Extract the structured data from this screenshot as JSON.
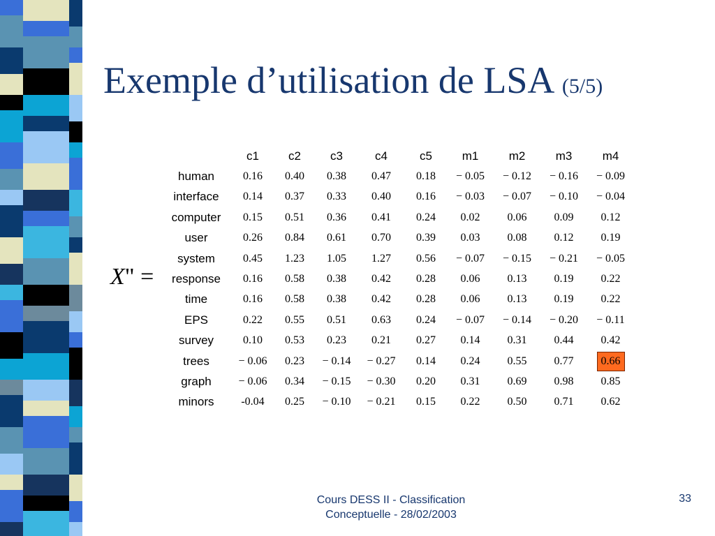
{
  "slide": {
    "title": "Exemple d’utilisation de LSA",
    "title_suffix": "(5/5)",
    "equation_var": "X",
    "equation_rest": "\" =",
    "footer_line1": "Cours DESS II - Classification",
    "footer_line2": "Conceptuelle - 28/02/2003",
    "page_number": "33",
    "colors": {
      "title": "#17376e",
      "highlight": "#ff6a1f"
    }
  },
  "table": {
    "columns": [
      "c1",
      "c2",
      "c3",
      "c4",
      "c5",
      "m1",
      "m2",
      "m3",
      "m4"
    ],
    "rows": [
      {
        "label": "human",
        "values": [
          "0.16",
          "0.40",
          "0.38",
          "0.47",
          "0.18",
          "− 0.05",
          "− 0.12",
          "− 0.16",
          "− 0.09"
        ]
      },
      {
        "label": "interface",
        "values": [
          "0.14",
          "0.37",
          "0.33",
          "0.40",
          "0.16",
          "− 0.03",
          "− 0.07",
          "− 0.10",
          "− 0.04"
        ]
      },
      {
        "label": "computer",
        "values": [
          "0.15",
          "0.51",
          "0.36",
          "0.41",
          "0.24",
          "0.02",
          "0.06",
          "0.09",
          "0.12"
        ]
      },
      {
        "label": "user",
        "values": [
          "0.26",
          "0.84",
          "0.61",
          "0.70",
          "0.39",
          "0.03",
          "0.08",
          "0.12",
          "0.19"
        ]
      },
      {
        "label": "system",
        "values": [
          "0.45",
          "1.23",
          "1.05",
          "1.27",
          "0.56",
          "− 0.07",
          "− 0.15",
          "− 0.21",
          "− 0.05"
        ]
      },
      {
        "label": "response",
        "values": [
          "0.16",
          "0.58",
          "0.38",
          "0.42",
          "0.28",
          "0.06",
          "0.13",
          "0.19",
          "0.22"
        ]
      },
      {
        "label": "time",
        "values": [
          "0.16",
          "0.58",
          "0.38",
          "0.42",
          "0.28",
          "0.06",
          "0.13",
          "0.19",
          "0.22"
        ]
      },
      {
        "label": "EPS",
        "values": [
          "0.22",
          "0.55",
          "0.51",
          "0.63",
          "0.24",
          "− 0.07",
          "− 0.14",
          "− 0.20",
          "− 0.11"
        ]
      },
      {
        "label": "survey",
        "values": [
          "0.10",
          "0.53",
          "0.23",
          "0.21",
          "0.27",
          "0.14",
          "0.31",
          "0.44",
          "0.42"
        ]
      },
      {
        "label": "trees",
        "values": [
          "− 0.06",
          "0.23",
          "− 0.14",
          "− 0.27",
          "0.14",
          "0.24",
          "0.55",
          "0.77",
          "0.66"
        ]
      },
      {
        "label": "graph",
        "values": [
          "− 0.06",
          "0.34",
          "− 0.15",
          "− 0.30",
          "0.20",
          "0.31",
          "0.69",
          "0.98",
          "0.85"
        ]
      },
      {
        "label": "minors",
        "values": [
          "-0.04",
          "0.25",
          "− 0.10",
          "− 0.21",
          "0.15",
          "0.22",
          "0.50",
          "0.71",
          "0.62"
        ]
      }
    ],
    "highlighted_cell": {
      "row": "trees",
      "column": "m4"
    }
  }
}
